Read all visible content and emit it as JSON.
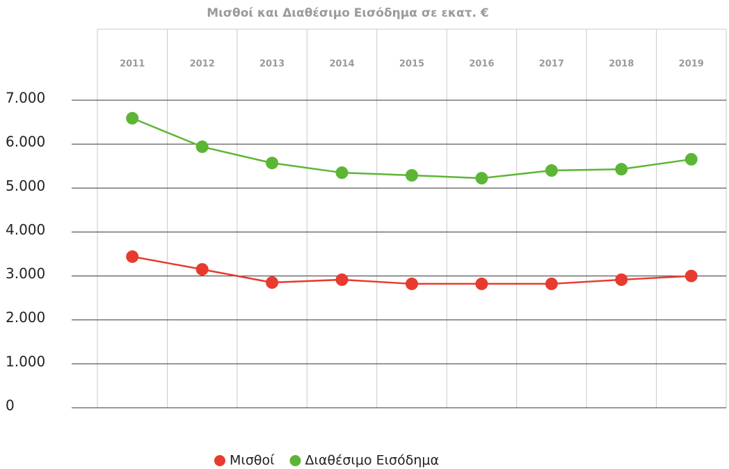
{
  "chart_data": {
    "type": "line",
    "title": "Μισθοί και Διαθέσιμο Εισόδημα σε εκατ. €",
    "categories": [
      "2011",
      "2012",
      "2013",
      "2014",
      "2015",
      "2016",
      "2017",
      "2018",
      "2019"
    ],
    "series": [
      {
        "name": "Μισθοί",
        "color": "#e63b2e",
        "values": [
          3440,
          3150,
          2850,
          2915,
          2820,
          2820,
          2820,
          2915,
          3000
        ]
      },
      {
        "name": "Διαθέσιμο Εισόδημα",
        "color": "#5db535",
        "values": [
          6590,
          5940,
          5570,
          5350,
          5290,
          5225,
          5400,
          5430,
          5655
        ]
      }
    ],
    "ylim": [
      0,
      7000
    ],
    "yticks": [
      0,
      {
        "value": 1000,
        "label": "1.000"
      },
      {
        "value": 2000,
        "label": "2.000"
      },
      {
        "value": 3000,
        "label": "3.000"
      },
      {
        "value": 4000,
        "label": "4.000"
      },
      {
        "value": 5000,
        "label": "5.000"
      },
      {
        "value": 6000,
        "label": "6.000"
      },
      {
        "value": 7000,
        "label": "7.000"
      }
    ],
    "grid": true,
    "legend": "bottom"
  }
}
